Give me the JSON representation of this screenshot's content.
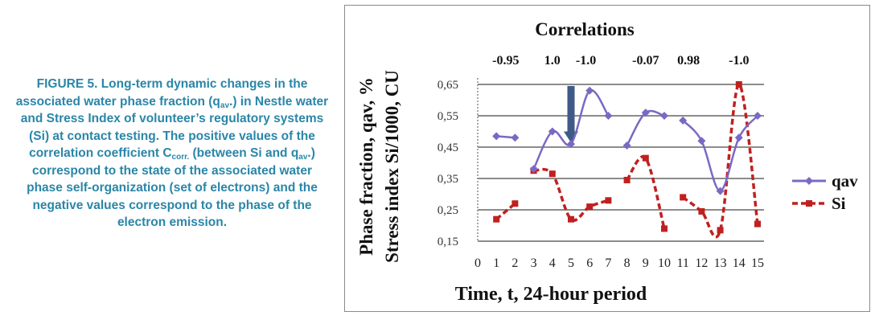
{
  "caption": {
    "label": "FIGURE 5.",
    "p1": " Long-term dynamic changes in the associated water phase fraction (q",
    "sub1": "av",
    "p2": ".) in Nestle water and Stress Index of volunteer’s regulatory systems (Si) at contact testing. The positive values of the correlation coefficient C",
    "sub2": "corr.",
    "p3": " (between Si and q",
    "sub3": "av",
    "p4": ".) correspond to the state of the associated water phase self-organization (set of electrons) and the negative values correspond to the phase of the electron emission."
  },
  "chart_data": {
    "type": "line",
    "title": "Correlations",
    "correlations": [
      {
        "label": "-0.95",
        "x": 1.5
      },
      {
        "label": "1.0",
        "x": 4
      },
      {
        "label": "-1.0",
        "x": 5.8
      },
      {
        "label": "-0.07",
        "x": 9
      },
      {
        "label": "0.98",
        "x": 11.3
      },
      {
        "label": "-1.0",
        "x": 14
      }
    ],
    "xlabel": "Time, t, 24-hour period",
    "ylabel_line1": "Phase fraction, qav,  %",
    "ylabel_line2": "Stress index Si/1000, CU",
    "xlim": [
      0,
      15
    ],
    "ylim": [
      0.15,
      0.65
    ],
    "x_ticks": [
      "0",
      "1",
      "2",
      "3",
      "4",
      "5",
      "6",
      "7",
      "8",
      "9",
      "10",
      "11",
      "12",
      "13",
      "14",
      "15"
    ],
    "y_ticks": [
      "0,15",
      "0,25",
      "0,35",
      "0,45",
      "0,55",
      "0,65"
    ],
    "grid": true,
    "legend_position": "right",
    "arrow_at_x": 5,
    "series": [
      {
        "name": "qav",
        "color": "#7b68c4",
        "marker": "diamond",
        "line_style": "solid",
        "segments": [
          [
            [
              1,
              0.485
            ],
            [
              2,
              0.48
            ]
          ],
          [
            [
              3,
              0.38
            ],
            [
              4,
              0.5
            ],
            [
              5,
              0.46
            ],
            [
              6,
              0.63
            ],
            [
              7,
              0.55
            ]
          ],
          [
            [
              8,
              0.455
            ],
            [
              9,
              0.56
            ],
            [
              10,
              0.55
            ]
          ],
          [
            [
              11,
              0.535
            ],
            [
              12,
              0.47
            ],
            [
              13,
              0.31
            ],
            [
              14,
              0.48
            ],
            [
              15,
              0.55
            ]
          ]
        ]
      },
      {
        "name": "Si",
        "color": "#c02020",
        "marker": "square",
        "line_style": "dashed",
        "segments": [
          [
            [
              1,
              0.22
            ],
            [
              2,
              0.27
            ]
          ],
          [
            [
              3,
              0.375
            ],
            [
              4,
              0.365
            ],
            [
              5,
              0.22
            ],
            [
              6,
              0.26
            ],
            [
              7,
              0.28
            ]
          ],
          [
            [
              8,
              0.345
            ],
            [
              9,
              0.415
            ],
            [
              10,
              0.19
            ]
          ],
          [
            [
              11,
              0.29
            ],
            [
              12,
              0.245
            ],
            [
              13,
              0.185
            ],
            [
              14,
              0.65
            ],
            [
              15,
              0.205
            ]
          ]
        ]
      }
    ]
  }
}
